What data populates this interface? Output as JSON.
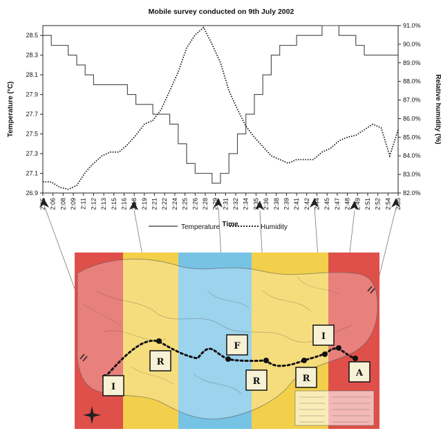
{
  "chart_data": {
    "type": "line",
    "title": "Mobile survey conducted on 9th July 2002",
    "xlabel": "Time",
    "ylabel_left": "Temperature (°C)",
    "ylabel_right": "Relative humidity (%)",
    "x_ticks": [
      "2:05",
      "2:06",
      "2:08",
      "2:09",
      "2:11",
      "2:12",
      "2:13",
      "2:15",
      "2:16",
      "2:18",
      "2:19",
      "2:21",
      "2:22",
      "2:24",
      "2:25",
      "2:26",
      "2:28",
      "2:29",
      "2:31",
      "2:32",
      "2:34",
      "2:35",
      "2:36",
      "2:38",
      "2:39",
      "2:41",
      "2:42",
      "2:44",
      "2:45",
      "2:47",
      "2:48",
      "2:49",
      "2:51",
      "2:52",
      "2:54",
      "2:55"
    ],
    "y_left_ticks": [
      "26.9",
      "27.1",
      "27.3",
      "27.5",
      "27.7",
      "27.9",
      "28.1",
      "28.3",
      "28.5"
    ],
    "y_right_ticks": [
      "82.0%",
      "83.0%",
      "84.0%",
      "85.0%",
      "86.0%",
      "87.0%",
      "88.0%",
      "89.0%",
      "90.0%",
      "91.0%"
    ],
    "ylim_left": [
      26.9,
      28.6
    ],
    "ylim_right": [
      82.0,
      91.0
    ],
    "series": [
      {
        "name": "Temperature",
        "axis": "left",
        "style": "solid",
        "values": [
          28.5,
          28.4,
          28.4,
          28.3,
          28.2,
          28.1,
          28.0,
          28.0,
          28.0,
          28.0,
          27.9,
          27.8,
          27.8,
          27.7,
          27.7,
          27.6,
          27.4,
          27.2,
          27.1,
          27.1,
          27.0,
          27.1,
          27.3,
          27.5,
          27.7,
          27.9,
          28.1,
          28.3,
          28.4,
          28.4,
          28.5,
          28.5,
          28.5,
          28.6,
          28.6,
          28.5,
          28.5,
          28.4,
          28.3,
          28.3,
          28.3,
          28.3,
          28.3
        ]
      },
      {
        "name": "Humidity",
        "axis": "right",
        "style": "dotted",
        "values": [
          82.6,
          82.6,
          82.3,
          82.2,
          82.4,
          83.1,
          83.6,
          84.0,
          84.2,
          84.2,
          84.6,
          85.1,
          85.7,
          85.9,
          86.5,
          87.5,
          88.5,
          89.8,
          90.5,
          90.9,
          90.0,
          89.0,
          87.5,
          86.5,
          85.6,
          85.0,
          84.5,
          84.0,
          83.8,
          83.6,
          83.8,
          83.8,
          83.8,
          84.2,
          84.4,
          84.8,
          85.0,
          85.1,
          85.4,
          85.7,
          85.5,
          84.0,
          85.4
        ]
      }
    ],
    "legend": {
      "position": "bottom",
      "items": [
        "Temperature",
        "Humidity"
      ]
    }
  },
  "map": {
    "zones": [
      {
        "label": "I",
        "color": "#e0504a"
      },
      {
        "label": "R",
        "color": "#f2d04b"
      },
      {
        "label": "F",
        "color": "#76c3e6"
      },
      {
        "label": "R",
        "color": "#f2d04b"
      },
      {
        "label": "I",
        "color": "#e0504a"
      }
    ],
    "markers": [
      "I",
      "R",
      "F",
      "R",
      "R",
      "I",
      "A"
    ]
  }
}
